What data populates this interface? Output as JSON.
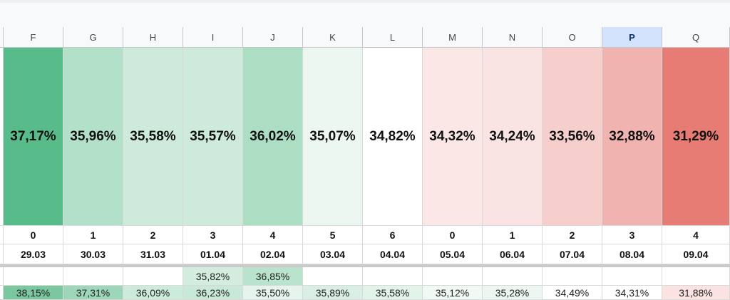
{
  "columns": [
    {
      "letter": "F",
      "selected": false,
      "percent": "37,17%",
      "heat": "#57bb8a",
      "index": "0",
      "date": "29.03",
      "extra": "",
      "extra_heat": "#ffffff",
      "bottom": "38,15%",
      "bottom_heat": "#7bc8a0"
    },
    {
      "letter": "G",
      "selected": false,
      "percent": "35,96%",
      "heat": "#b2e0c9",
      "index": "1",
      "date": "30.03",
      "extra": "",
      "extra_heat": "#ffffff",
      "bottom": "37,31%",
      "bottom_heat": "#9dd6b8"
    },
    {
      "letter": "H",
      "selected": false,
      "percent": "35,58%",
      "heat": "#cdeadb",
      "index": "2",
      "date": "31.03",
      "extra": "",
      "extra_heat": "#ffffff",
      "bottom": "36,09%",
      "bottom_heat": "#cdebdb"
    },
    {
      "letter": "I",
      "selected": false,
      "percent": "35,57%",
      "heat": "#cdeadb",
      "index": "3",
      "date": "01.04",
      "extra": "35,82%",
      "extra_heat": "#d2ecde",
      "bottom": "36,23%",
      "bottom_heat": "#c9e9d8"
    },
    {
      "letter": "J",
      "selected": false,
      "percent": "36,02%",
      "heat": "#acdec4",
      "index": "4",
      "date": "02.04",
      "extra": "36,85%",
      "extra_heat": "#b9e3cd",
      "bottom": "35,50%",
      "bottom_heat": "#e5f4ec"
    },
    {
      "letter": "K",
      "selected": false,
      "percent": "35,07%",
      "heat": "#ecf7f1",
      "index": "5",
      "date": "03.04",
      "extra": "",
      "extra_heat": "#ffffff",
      "bottom": "35,89%",
      "bottom_heat": "#d9efe3"
    },
    {
      "letter": "L",
      "selected": false,
      "percent": "34,82%",
      "heat": "#ffffff",
      "index": "6",
      "date": "04.04",
      "extra": "",
      "extra_heat": "#ffffff",
      "bottom": "35,58%",
      "bottom_heat": "#e2f3ea"
    },
    {
      "letter": "M",
      "selected": false,
      "percent": "34,32%",
      "heat": "#fbe7e6",
      "index": "0",
      "date": "05.04",
      "extra": "",
      "extra_heat": "#ffffff",
      "bottom": "35,12%",
      "bottom_heat": "#f1f9f5"
    },
    {
      "letter": "N",
      "selected": false,
      "percent": "34,24%",
      "heat": "#fae4e3",
      "index": "1",
      "date": "06.04",
      "extra": "",
      "extra_heat": "#ffffff",
      "bottom": "35,28%",
      "bottom_heat": "#ecf7f1"
    },
    {
      "letter": "O",
      "selected": false,
      "percent": "33,56%",
      "heat": "#f6cfcc",
      "index": "2",
      "date": "07.04",
      "extra": "",
      "extra_heat": "#ffffff",
      "bottom": "34,49%",
      "bottom_heat": "#ffffff"
    },
    {
      "letter": "P",
      "selected": true,
      "percent": "32,88%",
      "heat": "#f1b3b0",
      "index": "3",
      "date": "08.04",
      "extra": "",
      "extra_heat": "#ffffff",
      "bottom": "34,31%",
      "bottom_heat": "#ffffff"
    },
    {
      "letter": "Q",
      "selected": false,
      "percent": "31,29%",
      "heat": "#e67c73",
      "index": "4",
      "date": "09.04",
      "extra": "",
      "extra_heat": "#ffffff",
      "bottom": "31,88%",
      "bottom_heat": "#fbe3e2"
    }
  ],
  "colors": {
    "header_bg": "#f8f9fa",
    "selected_header_bg": "#d3e3fd",
    "gridline": "#d9d9d9",
    "freeze_bar": "#c9c9c9",
    "scale_high": "#57bb8a",
    "scale_mid": "#ffffff",
    "scale_low": "#e67c73"
  }
}
